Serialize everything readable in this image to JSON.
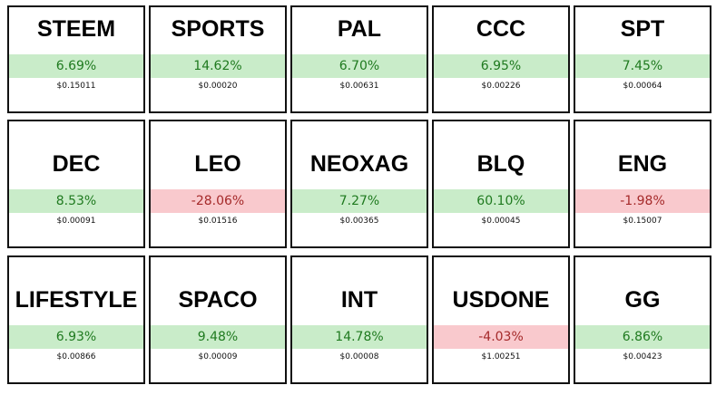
{
  "tiles": [
    {
      "symbol": "STEEM",
      "change": "6.69%",
      "price": "$0.15011"
    },
    {
      "symbol": "SPORTS",
      "change": "14.62%",
      "price": "$0.00020"
    },
    {
      "symbol": "PAL",
      "change": "6.70%",
      "price": "$0.00631"
    },
    {
      "symbol": "CCC",
      "change": "6.95%",
      "price": "$0.00226"
    },
    {
      "symbol": "SPT",
      "change": "7.45%",
      "price": "$0.00064"
    },
    {
      "symbol": "DEC",
      "change": "8.53%",
      "price": "$0.00091"
    },
    {
      "symbol": "LEO",
      "change": "-28.06%",
      "price": "$0.01516"
    },
    {
      "symbol": "NEOXAG",
      "change": "7.27%",
      "price": "$0.00365"
    },
    {
      "symbol": "BLQ",
      "change": "60.10%",
      "price": "$0.00045"
    },
    {
      "symbol": "ENG",
      "change": "-1.98%",
      "price": "$0.15007"
    },
    {
      "symbol": "LIFESTYLE",
      "change": "6.93%",
      "price": "$0.00866"
    },
    {
      "symbol": "SPACO",
      "change": "9.48%",
      "price": "$0.00009"
    },
    {
      "symbol": "INT",
      "change": "14.78%",
      "price": "$0.00008"
    },
    {
      "symbol": "USDONE",
      "change": "-4.03%",
      "price": "$1.00251"
    },
    {
      "symbol": "GG",
      "change": "6.86%",
      "price": "$0.00423"
    }
  ]
}
